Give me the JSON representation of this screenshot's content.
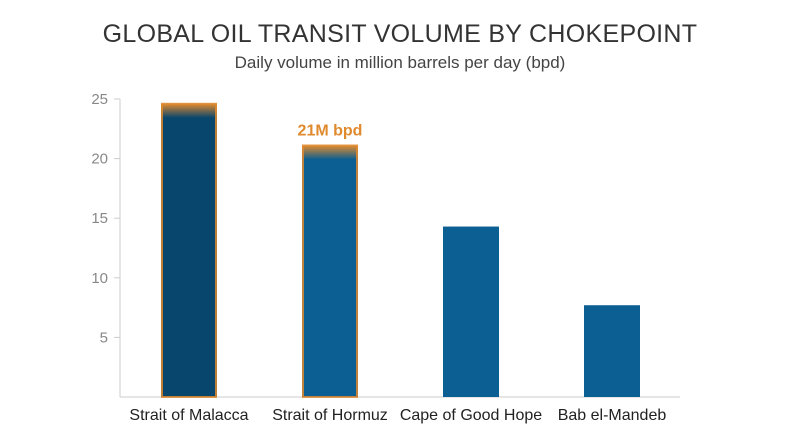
{
  "header": {
    "title": "GLOBAL OIL TRANSIT VOLUME BY CHOKEPOINT",
    "subtitle": "Daily volume in million barrels per day (bpd)"
  },
  "colors": {
    "bar_primary": "#0b5f93",
    "bar_dark": "#08466d",
    "highlight": "#e08a2e",
    "axis": "#cccccc",
    "tick_text": "#888888"
  },
  "chart_data": {
    "type": "bar",
    "title": "GLOBAL OIL TRANSIT VOLUME BY CHOKEPOINT",
    "subtitle": "Daily volume in million barrels per day (bpd)",
    "xlabel": "",
    "ylabel": "",
    "ylim": [
      0,
      25
    ],
    "yticks": [
      5,
      10,
      15,
      20,
      25
    ],
    "grid": false,
    "categories": [
      "Strait of Malacca",
      "Strait of Hormuz",
      "Cape of Good Hope",
      "Bab el-Mandeb"
    ],
    "values": [
      24.6,
      21.1,
      14.3,
      7.7
    ],
    "highlighted": [
      "Strait of Malacca",
      "Strait of Hormuz"
    ],
    "annotations": [
      {
        "category": "Strait of Hormuz",
        "text": "21M bpd"
      }
    ]
  }
}
